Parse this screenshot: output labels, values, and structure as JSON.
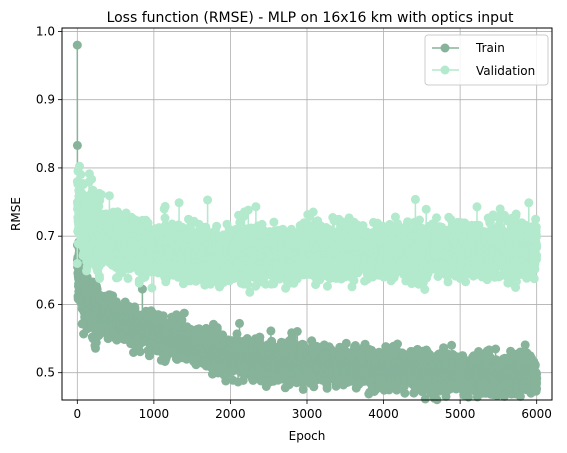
{
  "chart_data": {
    "type": "line",
    "title": "Loss function (RMSE) - MLP on 16x16 km with optics input",
    "xlabel": "Epoch",
    "ylabel": "RMSE",
    "xlim": [
      -200,
      6200
    ],
    "ylim": [
      0.46,
      1.005
    ],
    "xticks": [
      0,
      1000,
      2000,
      3000,
      4000,
      5000,
      6000
    ],
    "yticks": [
      0.5,
      0.6,
      0.7,
      0.8,
      0.9,
      1.0
    ],
    "xtick_labels": [
      "0",
      "1000",
      "2000",
      "3000",
      "4000",
      "5000",
      "6000"
    ],
    "ytick_labels": [
      "0.5",
      "0.6",
      "0.7",
      "0.8",
      "0.9",
      "1.0"
    ],
    "grid": true,
    "legend_position": "top-right",
    "epochs": 6000,
    "series": [
      {
        "name": "Train",
        "color": "#86b39a",
        "marker": "circle",
        "initial": [
          0.98,
          0.833,
          0.687,
          0.665,
          0.655
        ],
        "trend": [
          [
            5,
            0.655
          ],
          [
            50,
            0.63
          ],
          [
            100,
            0.605
          ],
          [
            200,
            0.59
          ],
          [
            500,
            0.578
          ],
          [
            1000,
            0.56
          ],
          [
            1500,
            0.54
          ],
          [
            2000,
            0.525
          ],
          [
            2500,
            0.516
          ],
          [
            3000,
            0.512
          ],
          [
            4000,
            0.505
          ],
          [
            5000,
            0.5
          ],
          [
            6000,
            0.496
          ]
        ],
        "noise": 0.012
      },
      {
        "name": "Validation",
        "color": "#b3e9cc",
        "marker": "circle",
        "initial": [
          0.66,
          0.78,
          0.75,
          0.74
        ],
        "trend": [
          [
            4,
            0.74
          ],
          [
            50,
            0.73
          ],
          [
            100,
            0.72
          ],
          [
            200,
            0.705
          ],
          [
            500,
            0.69
          ],
          [
            1000,
            0.68
          ],
          [
            1500,
            0.675
          ],
          [
            2000,
            0.672
          ],
          [
            2500,
            0.673
          ],
          [
            3000,
            0.676
          ],
          [
            4000,
            0.678
          ],
          [
            5000,
            0.678
          ],
          [
            6000,
            0.68
          ]
        ],
        "noise": 0.018
      }
    ]
  }
}
